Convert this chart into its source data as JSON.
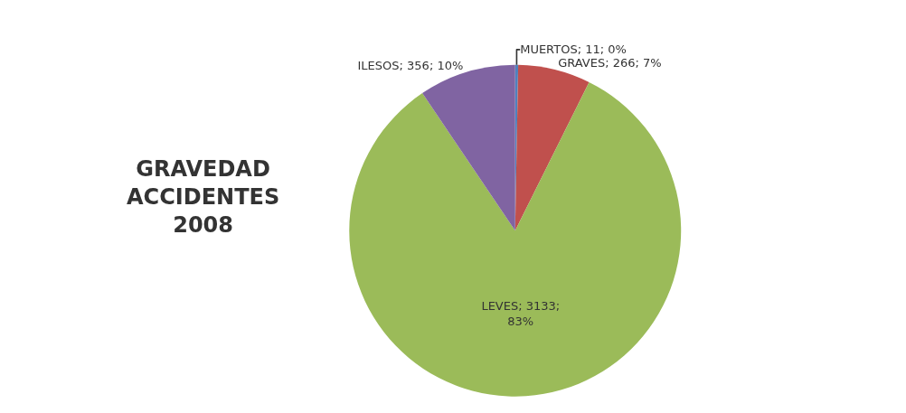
{
  "chart_data": {
    "type": "pie",
    "title": "GRAVEDAD\nACCIDENTES\n2008",
    "categories": [
      "MUERTOS; 11; 0%",
      "GRAVES; 266; 7%",
      "LEVES; 3133;\n83%",
      "ILESOS; 356; 10%"
    ],
    "values": [
      11,
      266,
      3133,
      356
    ],
    "colors": [
      "#4f81bd",
      "#c0504d",
      "#9bbb59",
      "#8064a2"
    ],
    "legend": false
  }
}
